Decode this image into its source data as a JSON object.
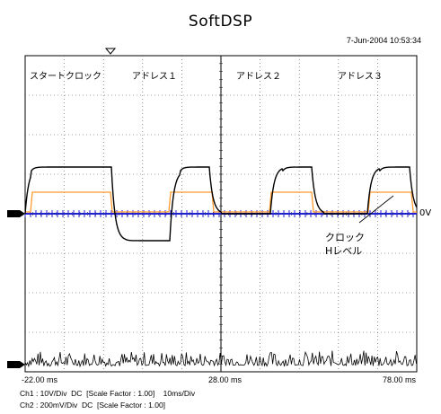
{
  "header": {
    "title": "SoftDSP",
    "timestamp": "7-Jun-2004 10:53:34"
  },
  "annotations": {
    "start_clock": "スタートクロック",
    "address1": "アドレス１",
    "address2": "アドレス２",
    "address3": "アドレス３",
    "clock": "クロック",
    "h_level": "Hレベル",
    "zero_volt": "0V"
  },
  "axis": {
    "left_time": "-22.00 ms",
    "center_time": "28.00 ms",
    "right_time": "78.00 ms"
  },
  "channels": {
    "ch1_info": "Ch1 : 10V/Div  DC  [Scale Factor : 1.00]    10ms/Div",
    "ch2_info": "Ch2 : 200mV/Div  DC  [Scale Factor : 1.00]"
  },
  "colors": {
    "ch1": "#000000",
    "ch2": "#ff9a30",
    "zero_line": "#2222cc",
    "grid": "#555555"
  }
}
